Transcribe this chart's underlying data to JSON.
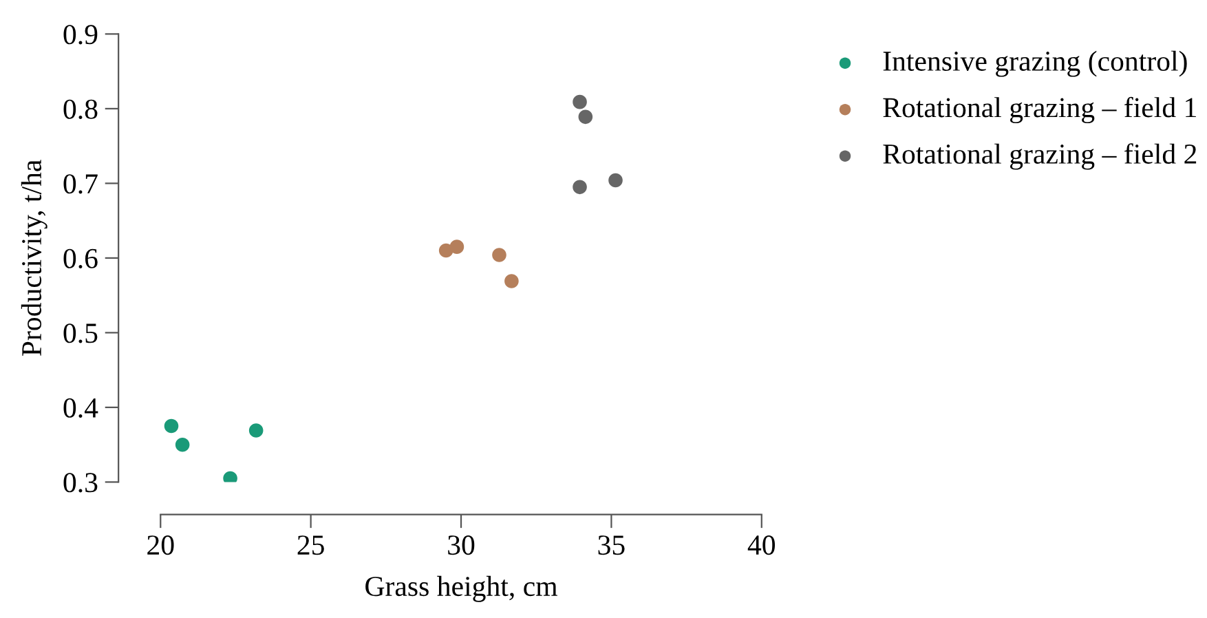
{
  "chart_data": {
    "type": "scatter",
    "xlabel": "Grass height, cm",
    "ylabel": "Productivity, t/ha",
    "xlim": [
      20,
      40
    ],
    "xticks": [
      20,
      25,
      30,
      35,
      40
    ],
    "ylim": [
      0.3,
      0.9
    ],
    "yticks": [
      0.3,
      0.4,
      0.5,
      0.6,
      0.7,
      0.8,
      0.9
    ],
    "grid": false,
    "legend": "top right",
    "marker": "circle",
    "series": [
      {
        "name": "Intensive grazing (control)",
        "color": "#1a9a78",
        "x": [
          20.36,
          20.73,
          22.32,
          23.18
        ],
        "values": [
          0.375,
          0.35,
          0.305,
          0.369
        ]
      },
      {
        "name": "Rotational grazing – field 1",
        "color": "#b57f5b",
        "x": [
          29.5,
          29.86,
          31.27,
          31.68
        ],
        "values": [
          0.61,
          0.615,
          0.604,
          0.569
        ]
      },
      {
        "name": "Rotational grazing – field 2",
        "color": "#666666",
        "x": [
          33.95,
          34.14,
          33.95,
          35.14
        ],
        "values": [
          0.809,
          0.789,
          0.695,
          0.704
        ]
      }
    ]
  }
}
